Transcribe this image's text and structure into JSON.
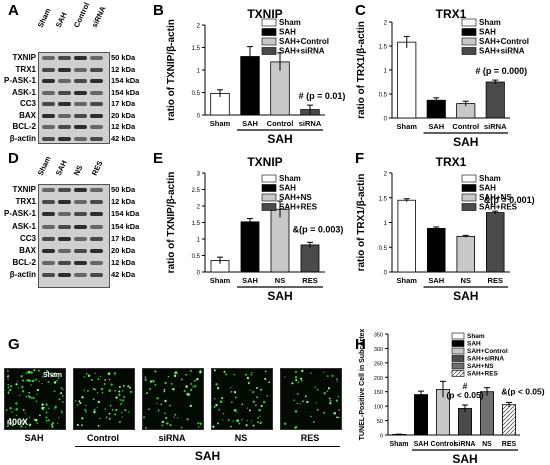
{
  "panels": {
    "A": "A",
    "B": "B",
    "C": "C",
    "D": "D",
    "E": "E",
    "F": "F",
    "G": "G",
    "H": "H"
  },
  "blot_A": {
    "lanes": [
      "Sham",
      "SAH",
      "Control",
      "siRNA"
    ],
    "proteins": [
      "TXNIP",
      "TRX1",
      "P-ASK-1",
      "ASK-1",
      "CC3",
      "BAX",
      "BCL-2",
      "β-actin"
    ],
    "sizes": [
      "50 kDa",
      "12 kDa",
      "154 kDa",
      "154 kDa",
      "17 kDa",
      "20 kDa",
      "12 kDa",
      "42 kDa"
    ]
  },
  "blot_D": {
    "lanes": [
      "Sham",
      "SAH",
      "NS",
      "RES"
    ],
    "proteins": [
      "TXNIP",
      "TRX1",
      "P-ASK-1",
      "ASK-1",
      "CC3",
      "BAX",
      "BCL-2",
      "β-actin"
    ],
    "sizes": [
      "50 kDa",
      "12 kDa",
      "154 kDa",
      "154 kDa",
      "17 kDa",
      "20 kDa",
      "12 kDa",
      "42 kDa"
    ]
  },
  "tunel": {
    "magnification": "400X",
    "inset": "Sham",
    "names": [
      "SAH",
      "Control",
      "siRNA",
      "NS",
      "RES"
    ],
    "group": "SAH"
  },
  "chart_data": [
    {
      "id": "B",
      "type": "bar",
      "title": "TXNIP",
      "ylabel": "ratio of TXNIP/β-actin",
      "ylim": [
        0,
        2
      ],
      "yticks": [
        "0",
        "0.5",
        "1",
        "1.5",
        "2"
      ],
      "categories": [
        "Sham",
        "SAH",
        "Control",
        "siRNA"
      ],
      "values": [
        0.48,
        1.3,
        1.18,
        0.12
      ],
      "errors": [
        0.08,
        0.22,
        0.2,
        0.1
      ],
      "colors": [
        "#ffffff",
        "#000000",
        "#c8c8c8",
        "#4a4a4a"
      ],
      "legend": [
        "Sham",
        "SAH",
        "SAH+Control",
        "SAH+siRNA"
      ],
      "group_label": "SAH",
      "group_span": [
        1,
        3
      ],
      "annotation": {
        "text": "# (p = 0.01)",
        "index": 3
      }
    },
    {
      "id": "C",
      "type": "bar",
      "title": "TRX1",
      "ylabel": "ratio of TRX1/β-actin",
      "ylim": [
        0,
        2
      ],
      "yticks": [
        "0",
        "0.5",
        "1",
        "1.5",
        "2"
      ],
      "categories": [
        "Sham",
        "SAH",
        "Control",
        "siRNA"
      ],
      "values": [
        1.58,
        0.37,
        0.3,
        0.75
      ],
      "errors": [
        0.12,
        0.05,
        0.05,
        0.04
      ],
      "colors": [
        "#ffffff",
        "#000000",
        "#c8c8c8",
        "#4a4a4a"
      ],
      "legend": [
        "Sham",
        "SAH",
        "SAH+Control",
        "SAH+siRNA"
      ],
      "group_label": "SAH",
      "group_span": [
        1,
        3
      ],
      "annotation": {
        "text": "# (p = 0.000)",
        "index": 3
      }
    },
    {
      "id": "E",
      "type": "bar",
      "title": "TXNIP",
      "ylabel": "ratio of TXNIP/β-actin",
      "ylim": [
        0,
        3
      ],
      "yticks": [
        "0",
        "0.5",
        "1",
        "1.5",
        "2",
        "2.5",
        "3"
      ],
      "categories": [
        "Sham",
        "SAH",
        "NS",
        "RES"
      ],
      "values": [
        0.35,
        1.52,
        1.9,
        0.82
      ],
      "errors": [
        0.1,
        0.1,
        0.25,
        0.08
      ],
      "colors": [
        "#ffffff",
        "#000000",
        "#c8c8c8",
        "#4a4a4a"
      ],
      "legend": [
        "Sham",
        "SAH",
        "SAH+NS",
        "SAH+RES"
      ],
      "group_label": "SAH",
      "group_span": [
        1,
        3
      ],
      "annotation": {
        "text": "&(p = 0.003)",
        "index": 3
      }
    },
    {
      "id": "F",
      "type": "bar",
      "title": "TRX1",
      "ylabel": "ratio of TRX1/β-actin",
      "ylim": [
        0,
        2
      ],
      "yticks": [
        "0",
        "0.5",
        "1",
        "1.5",
        "2"
      ],
      "categories": [
        "Sham",
        "SAH",
        "NS",
        "RES"
      ],
      "values": [
        1.45,
        0.88,
        0.72,
        1.2
      ],
      "errors": [
        0.03,
        0.03,
        0.02,
        0.03
      ],
      "colors": [
        "#ffffff",
        "#000000",
        "#c8c8c8",
        "#4a4a4a"
      ],
      "legend": [
        "Sham",
        "SAH",
        "SAH+NS",
        "SAH+RES"
      ],
      "group_label": "SAH",
      "group_span": [
        1,
        3
      ],
      "annotation": {
        "text": "&(p = 0.001)",
        "index": 3
      }
    },
    {
      "id": "H",
      "type": "bar",
      "title": "",
      "ylabel": "TUNEL-Positive Cell in Subcortex",
      "ylim": [
        0,
        350
      ],
      "yticks": [
        "0",
        "50",
        "100",
        "150",
        "200",
        "250",
        "300",
        "350"
      ],
      "categories": [
        "Sham",
        "SAH",
        "Control",
        "siRNA",
        "NS",
        "RES"
      ],
      "values": [
        2,
        140,
        158,
        92,
        150,
        105
      ],
      "errors": [
        1,
        12,
        28,
        12,
        14,
        8
      ],
      "colors": [
        "#ffffff",
        "#000000",
        "#c8c8c8",
        "#4a4a4a",
        "#707070",
        "#e0e0e0"
      ],
      "legend": [
        "Sham",
        "SAH",
        "SAH+Control",
        "SAH+siRNA",
        "SAH+NS",
        "SAH+RES"
      ],
      "group_label": "SAH",
      "group_span": [
        1,
        5
      ],
      "annotations": [
        {
          "text": "#",
          "index": 3
        },
        {
          "text": "(p < 0.05)",
          "index": 3
        },
        {
          "text": "&(p < 0.05)",
          "index": 5
        }
      ]
    }
  ]
}
